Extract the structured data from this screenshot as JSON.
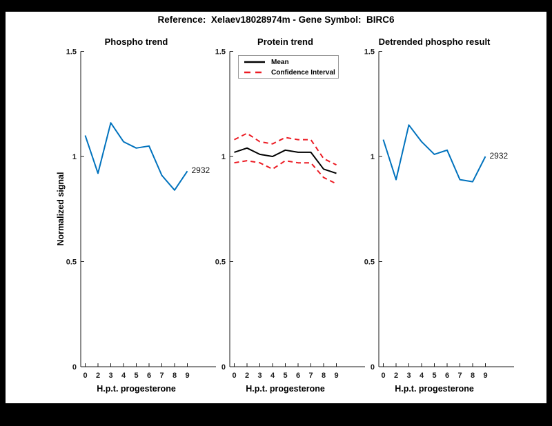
{
  "figure": {
    "title": "Reference:  Xelaev18028974m - Gene Symbol:  BIRC6",
    "background": "#ffffff",
    "frame_color": "#000000"
  },
  "colors": {
    "blue": "#0072BD",
    "red": "#EC1B23",
    "black": "#000000",
    "axis": "#1a1a1a"
  },
  "shared_axis": {
    "ylabel": "Normalized signal",
    "xlabel": "H.p.t. progesterone",
    "ylim": [
      0,
      1.5
    ],
    "y_tick_labels": [
      "0",
      "0.5",
      "1",
      "1.5"
    ],
    "x_tick_labels": [
      "0",
      "2",
      "3",
      "4",
      "5",
      "6",
      "7",
      "8",
      "9"
    ],
    "grid": "off"
  },
  "chart_data": [
    {
      "type": "line",
      "title": "Phospho trend",
      "xlabel": "H.p.t. progesterone",
      "ylabel": "Normalized signal",
      "ylim": [
        0,
        1.5
      ],
      "x_tick_labels": [
        "0",
        "2",
        "3",
        "4",
        "5",
        "6",
        "7",
        "8",
        "9"
      ],
      "y_tick_labels": [
        "0",
        "0.5",
        "1",
        "1.5"
      ],
      "end_label": "2932",
      "series": [
        {
          "name": "2932",
          "color": "#0072BD",
          "dash": "solid",
          "values": [
            1.1,
            0.92,
            1.16,
            1.07,
            1.04,
            1.05,
            0.91,
            0.84,
            0.93
          ]
        }
      ]
    },
    {
      "type": "line",
      "title": "Protein trend",
      "xlabel": "H.p.t. progesterone",
      "ylim": [
        0,
        1.5
      ],
      "x_tick_labels": [
        "0",
        "2",
        "3",
        "4",
        "5",
        "6",
        "7",
        "8",
        "9"
      ],
      "y_tick_labels": [
        "0",
        "0.5",
        "1",
        "1.5"
      ],
      "legend": {
        "position": "northwest",
        "items": [
          {
            "label": "Mean",
            "color": "#000000",
            "dash": "solid"
          },
          {
            "label": "Confidence Interval",
            "color": "#EC1B23",
            "dash": "dashed"
          }
        ]
      },
      "series": [
        {
          "name": "Mean",
          "color": "#000000",
          "dash": "solid",
          "values": [
            1.02,
            1.04,
            1.01,
            1.0,
            1.03,
            1.02,
            1.02,
            0.94,
            0.92
          ]
        },
        {
          "name": "Confidence Interval upper",
          "color": "#EC1B23",
          "dash": "dashed",
          "values": [
            1.08,
            1.11,
            1.07,
            1.06,
            1.09,
            1.08,
            1.08,
            0.99,
            0.96
          ]
        },
        {
          "name": "Confidence Interval lower",
          "color": "#EC1B23",
          "dash": "dashed",
          "values": [
            0.97,
            0.98,
            0.97,
            0.94,
            0.98,
            0.97,
            0.97,
            0.9,
            0.87
          ]
        }
      ]
    },
    {
      "type": "line",
      "title": "Detrended phospho result",
      "xlabel": "H.p.t. progesterone",
      "ylim": [
        0,
        1.5
      ],
      "x_tick_labels": [
        "0",
        "2",
        "3",
        "4",
        "5",
        "6",
        "7",
        "8",
        "9"
      ],
      "y_tick_labels": [
        "0",
        "0.5",
        "1",
        "1.5"
      ],
      "end_label": "2932",
      "series": [
        {
          "name": "2932",
          "color": "#0072BD",
          "dash": "solid",
          "values": [
            1.08,
            0.89,
            1.15,
            1.07,
            1.01,
            1.03,
            0.89,
            0.88,
            1.0
          ]
        }
      ]
    }
  ]
}
